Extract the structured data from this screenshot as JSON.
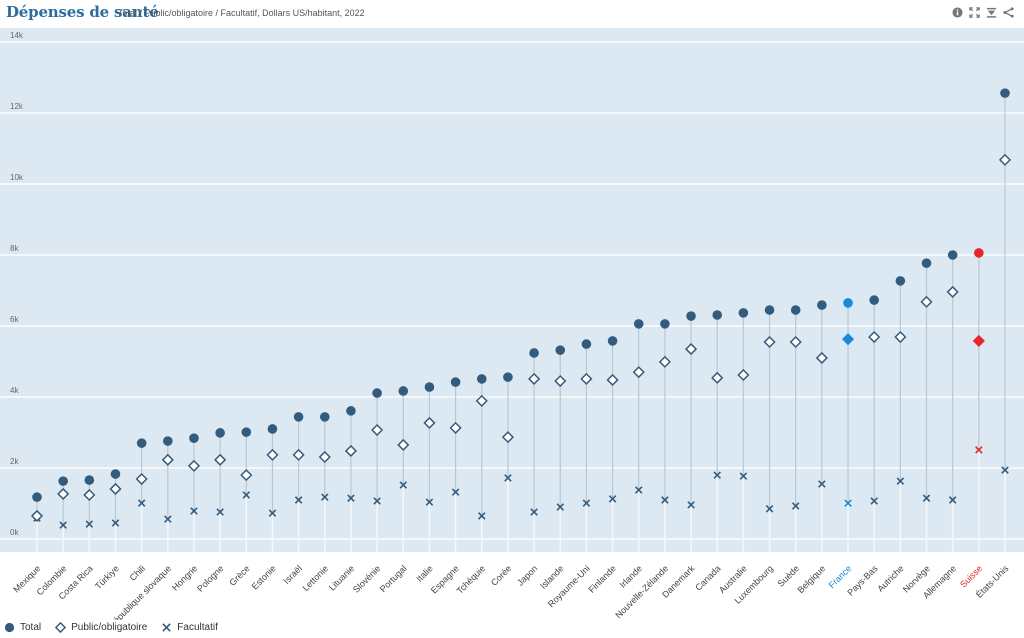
{
  "header": {
    "title": "Dépenses de santé",
    "subtitle": "Total / Public/obligatoire / Facultatif, Dollars US/habitant, 2022",
    "icons": [
      "info-icon",
      "fullscreen-icon",
      "download-icon",
      "share-icon"
    ]
  },
  "colors": {
    "series": "#335b7e",
    "highlight_france": "#1a8ad6",
    "highlight_suisse": "#e8252a",
    "plot_background": "#dde9f2",
    "gridline": "#f4f8fb",
    "stem": "#b9c7d2"
  },
  "chart_data": {
    "type": "scatter",
    "title": "Dépenses de santé",
    "subtitle": "Total / Public/obligatoire / Facultatif, Dollars US/habitant, 2022",
    "xlabel": "",
    "ylabel": "",
    "ylim": [
      0,
      14000
    ],
    "yticks": [
      0,
      2000,
      4000,
      6000,
      8000,
      10000,
      12000,
      14000
    ],
    "ytick_labels": [
      "0k",
      "2k",
      "4k",
      "6k",
      "8k",
      "10k",
      "12k",
      "14k"
    ],
    "grid": true,
    "legend_position": "bottom-left",
    "categories": [
      "Mexique",
      "Colombie",
      "Costa Rica",
      "Türkiye",
      "Chili",
      "République slovaque",
      "Hongrie",
      "Pologne",
      "Grèce",
      "Estonie",
      "Israël",
      "Lettonie",
      "Lituanie",
      "Slovénie",
      "Portugal",
      "Italie",
      "Espagne",
      "Tchéquie",
      "Corée",
      "Japon",
      "Islande",
      "Royaume-Uni",
      "Finlande",
      "Irlande",
      "Nouvelle-Zélande",
      "Danemark",
      "Canada",
      "Australie",
      "Luxembourg",
      "Suède",
      "Belgique",
      "France",
      "Pays-Bas",
      "Autriche",
      "Norvège",
      "Allemagne",
      "Suisse",
      "États-Unis"
    ],
    "highlights": {
      "France": "#1a8ad6",
      "Suisse": "#e8252a"
    },
    "series": [
      {
        "name": "Total",
        "marker": "circle",
        "values": [
          1180,
          1630,
          1660,
          1830,
          2700,
          2760,
          2840,
          2990,
          3010,
          3100,
          3440,
          3440,
          3610,
          4110,
          4170,
          4280,
          4420,
          4510,
          4560,
          5240,
          5320,
          5490,
          5580,
          6060,
          6060,
          6280,
          6310,
          6370,
          6450,
          6450,
          6590,
          6650,
          6730,
          7270,
          7770,
          8000,
          8060,
          12560
        ]
      },
      {
        "name": "Public/obligatoire",
        "marker": "diamond",
        "values": [
          650,
          1270,
          1240,
          1410,
          1690,
          2230,
          2060,
          2230,
          1800,
          2370,
          2370,
          2310,
          2480,
          3070,
          2650,
          3270,
          3130,
          3890,
          2870,
          4510,
          4450,
          4510,
          4480,
          4700,
          4990,
          5350,
          4540,
          4620,
          5550,
          5550,
          5100,
          5630,
          5690,
          5690,
          6680,
          6960,
          5580,
          10680
        ]
      },
      {
        "name": "Facultatif",
        "marker": "cross",
        "values": [
          590,
          390,
          420,
          450,
          1010,
          560,
          790,
          760,
          1240,
          730,
          1100,
          1180,
          1150,
          1070,
          1520,
          1040,
          1320,
          650,
          1720,
          760,
          900,
          1010,
          1130,
          1380,
          1100,
          960,
          1800,
          1770,
          850,
          930,
          1550,
          1010,
          1070,
          1630,
          1150,
          1100,
          2510,
          1940
        ]
      }
    ]
  },
  "legend": [
    {
      "label": "Total",
      "marker": "circle"
    },
    {
      "label": "Public/obligatoire",
      "marker": "diamond"
    },
    {
      "label": "Facultatif",
      "marker": "cross"
    }
  ]
}
